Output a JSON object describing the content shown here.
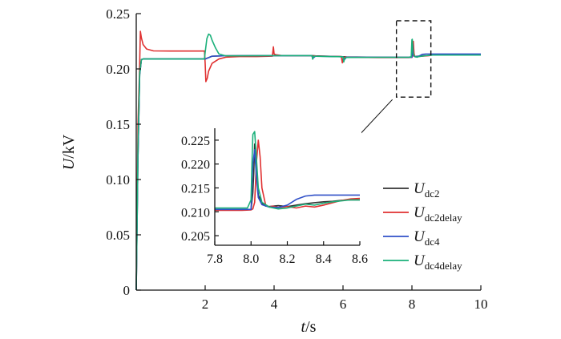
{
  "chart_data": [
    {
      "type": "line",
      "title": "",
      "xlabel": {
        "var": "t",
        "unit": "s"
      },
      "ylabel": {
        "var": "U",
        "unit": "kV"
      },
      "xlim": [
        0,
        10
      ],
      "ylim": [
        0,
        0.25
      ],
      "xticks": [
        {
          "value": 2,
          "label": "2"
        },
        {
          "value": 4,
          "label": "4"
        },
        {
          "value": 6,
          "label": "6"
        },
        {
          "value": 8,
          "label": "8"
        },
        {
          "value": 10,
          "label": "10"
        }
      ],
      "yticks": [
        {
          "value": 0,
          "label": "0"
        },
        {
          "value": 0.05,
          "label": "0.05"
        },
        {
          "value": 0.1,
          "label": "0.10"
        },
        {
          "value": 0.15,
          "label": "0.15"
        },
        {
          "value": 0.2,
          "label": "0.20"
        },
        {
          "value": 0.25,
          "label": "0.25"
        }
      ],
      "zoom_box": {
        "x": [
          7.55,
          8.55
        ],
        "y": [
          0.1745,
          0.2435
        ]
      },
      "series": [
        {
          "name": {
            "main": "U",
            "sub": "dc2"
          },
          "color": "#333333",
          "x": [
            0,
            0.05,
            0.1,
            0.15,
            0.2,
            1.0,
            2.0,
            2.2,
            2.5,
            3.0,
            4.0,
            4.5,
            5.1,
            5.2,
            6.0,
            6.1,
            7.0,
            7.9,
            8.0,
            8.01,
            8.02,
            8.04,
            8.06,
            8.08,
            8.1,
            8.3,
            8.6,
            9.0,
            10.0
          ],
          "y": [
            0,
            0.12,
            0.195,
            0.2085,
            0.209,
            0.209,
            0.209,
            0.2115,
            0.2118,
            0.2119,
            0.212,
            0.212,
            0.212,
            0.2118,
            0.211,
            0.2108,
            0.2106,
            0.2105,
            0.2105,
            0.215,
            0.224,
            0.2135,
            0.2118,
            0.2112,
            0.2113,
            0.2118,
            0.2125,
            0.2125,
            0.2125
          ]
        },
        {
          "name": {
            "main": "U",
            "sub": "dc2delay"
          },
          "color": "#e03030",
          "x": [
            0,
            0.05,
            0.1,
            0.12,
            0.15,
            0.2,
            0.3,
            0.5,
            1.0,
            1.98,
            2.0,
            2.02,
            2.06,
            2.1,
            2.2,
            2.4,
            2.6,
            3.0,
            3.5,
            3.95,
            3.98,
            4.0,
            4.05,
            4.2,
            4.5,
            5.1,
            5.12,
            5.15,
            5.25,
            5.95,
            5.98,
            6.0,
            6.05,
            6.2,
            7.0,
            7.9,
            8.0,
            8.02,
            8.04,
            8.06,
            8.08,
            8.1,
            8.15,
            8.3,
            8.5,
            8.6,
            9.0,
            10.0
          ],
          "y": [
            0,
            0.15,
            0.205,
            0.234,
            0.228,
            0.222,
            0.218,
            0.2163,
            0.2162,
            0.2162,
            0.205,
            0.1885,
            0.1915,
            0.198,
            0.205,
            0.209,
            0.2106,
            0.2112,
            0.2112,
            0.2115,
            0.22,
            0.2135,
            0.2128,
            0.2122,
            0.212,
            0.212,
            0.2098,
            0.2118,
            0.2116,
            0.2112,
            0.2055,
            0.2095,
            0.2106,
            0.2105,
            0.2103,
            0.2103,
            0.2105,
            0.2118,
            0.225,
            0.2142,
            0.2112,
            0.211,
            0.2111,
            0.2115,
            0.212,
            0.2128,
            0.2128,
            0.2128
          ]
        },
        {
          "name": {
            "main": "U",
            "sub": "dc4"
          },
          "color": "#3050c8",
          "x": [
            0,
            0.05,
            0.1,
            0.15,
            0.2,
            1.0,
            2.0,
            2.2,
            2.5,
            3.0,
            4.0,
            5.1,
            5.12,
            5.2,
            6.0,
            6.02,
            6.1,
            7.0,
            7.9,
            8.0,
            8.01,
            8.02,
            8.04,
            8.06,
            8.1,
            8.2,
            8.3,
            8.4,
            8.6,
            9.0,
            10.0
          ],
          "y": [
            0,
            0.12,
            0.195,
            0.2085,
            0.209,
            0.209,
            0.209,
            0.2115,
            0.2118,
            0.2119,
            0.212,
            0.212,
            0.2095,
            0.2115,
            0.211,
            0.2075,
            0.2106,
            0.2106,
            0.2105,
            0.2105,
            0.216,
            0.223,
            0.2135,
            0.2115,
            0.211,
            0.2115,
            0.2132,
            0.2135,
            0.2135,
            0.2135,
            0.2135
          ]
        },
        {
          "name": {
            "main": "U",
            "sub": "dc4delay"
          },
          "color": "#1ab07a",
          "x": [
            0,
            0.05,
            0.1,
            0.15,
            0.2,
            1.0,
            1.98,
            2.0,
            2.05,
            2.1,
            2.15,
            2.2,
            2.3,
            2.4,
            2.6,
            3.0,
            4.0,
            4.1,
            5.1,
            5.12,
            5.15,
            5.3,
            6.0,
            6.02,
            6.05,
            6.1,
            7.0,
            7.9,
            7.98,
            8.0,
            8.01,
            8.03,
            8.06,
            8.1,
            8.15,
            8.2,
            8.4,
            8.6,
            9.0,
            10.0
          ],
          "y": [
            0,
            0.13,
            0.196,
            0.2085,
            0.209,
            0.209,
            0.209,
            0.215,
            0.2275,
            0.2315,
            0.2305,
            0.226,
            0.219,
            0.2135,
            0.2118,
            0.2118,
            0.212,
            0.212,
            0.212,
            0.2088,
            0.2115,
            0.2114,
            0.211,
            0.2062,
            0.2098,
            0.2104,
            0.2105,
            0.2105,
            0.211,
            0.2265,
            0.2268,
            0.215,
            0.212,
            0.211,
            0.2106,
            0.2112,
            0.212,
            0.2125,
            0.2125,
            0.2125
          ]
        }
      ]
    },
    {
      "type": "line",
      "title": "",
      "xlim": [
        7.8,
        8.6
      ],
      "ylim": [
        0.203,
        0.2275
      ],
      "xticks": [
        {
          "value": 7.8,
          "label": "7.8"
        },
        {
          "value": 8.0,
          "label": "8.0"
        },
        {
          "value": 8.2,
          "label": "8.2"
        },
        {
          "value": 8.4,
          "label": "8.4"
        },
        {
          "value": 8.6,
          "label": "8.6"
        }
      ],
      "yticks": [
        {
          "value": 0.205,
          "label": "0.205"
        },
        {
          "value": 0.21,
          "label": "0.210"
        },
        {
          "value": 0.215,
          "label": "0.215"
        },
        {
          "value": 0.22,
          "label": "0.220"
        },
        {
          "value": 0.225,
          "label": "0.225"
        }
      ],
      "series": [
        {
          "name": {
            "main": "U",
            "sub": "dc2"
          },
          "color": "#333333",
          "x": [
            7.8,
            7.95,
            8.0,
            8.01,
            8.015,
            8.02,
            8.03,
            8.04,
            8.06,
            8.08,
            8.1,
            8.15,
            8.2,
            8.25,
            8.3,
            8.35,
            8.4,
            8.45,
            8.5,
            8.55,
            8.6
          ],
          "y": [
            0.2105,
            0.2105,
            0.2105,
            0.214,
            0.218,
            0.2242,
            0.2185,
            0.2135,
            0.2118,
            0.2112,
            0.2111,
            0.2113,
            0.2111,
            0.2114,
            0.2117,
            0.2119,
            0.2121,
            0.2122,
            0.2124,
            0.2125,
            0.2125
          ]
        },
        {
          "name": {
            "main": "U",
            "sub": "dc2delay"
          },
          "color": "#e03030",
          "x": [
            7.8,
            7.95,
            8.0,
            8.01,
            8.02,
            8.03,
            8.04,
            8.05,
            8.06,
            8.08,
            8.1,
            8.12,
            8.15,
            8.2,
            8.25,
            8.3,
            8.35,
            8.4,
            8.45,
            8.5,
            8.55,
            8.6
          ],
          "y": [
            0.2103,
            0.2103,
            0.2104,
            0.2106,
            0.212,
            0.2205,
            0.225,
            0.2215,
            0.215,
            0.2115,
            0.211,
            0.2112,
            0.2109,
            0.2111,
            0.2108,
            0.2112,
            0.211,
            0.2114,
            0.2119,
            0.2124,
            0.2127,
            0.2128
          ]
        },
        {
          "name": {
            "main": "U",
            "sub": "dc4"
          },
          "color": "#3050c8",
          "x": [
            7.8,
            7.95,
            8.0,
            8.005,
            8.01,
            8.02,
            8.03,
            8.04,
            8.06,
            8.1,
            8.15,
            8.2,
            8.25,
            8.3,
            8.35,
            8.4,
            8.45,
            8.5,
            8.55,
            8.6
          ],
          "y": [
            0.2105,
            0.2105,
            0.2105,
            0.215,
            0.22,
            0.223,
            0.217,
            0.213,
            0.2115,
            0.211,
            0.2109,
            0.2114,
            0.2126,
            0.2133,
            0.2135,
            0.2135,
            0.2135,
            0.2135,
            0.2135,
            0.2135
          ]
        },
        {
          "name": {
            "main": "U",
            "sub": "dc4delay"
          },
          "color": "#1ab07a",
          "x": [
            7.8,
            7.9,
            7.98,
            8.0,
            8.005,
            8.01,
            8.02,
            8.03,
            8.04,
            8.06,
            8.1,
            8.15,
            8.2,
            8.25,
            8.3,
            8.35,
            8.4,
            8.45,
            8.5,
            8.55,
            8.6
          ],
          "y": [
            0.2108,
            0.2108,
            0.2108,
            0.2125,
            0.22,
            0.2262,
            0.2268,
            0.221,
            0.215,
            0.212,
            0.211,
            0.2106,
            0.2108,
            0.2112,
            0.2116,
            0.2114,
            0.2118,
            0.2121,
            0.2123,
            0.2125,
            0.2125
          ]
        }
      ]
    }
  ]
}
